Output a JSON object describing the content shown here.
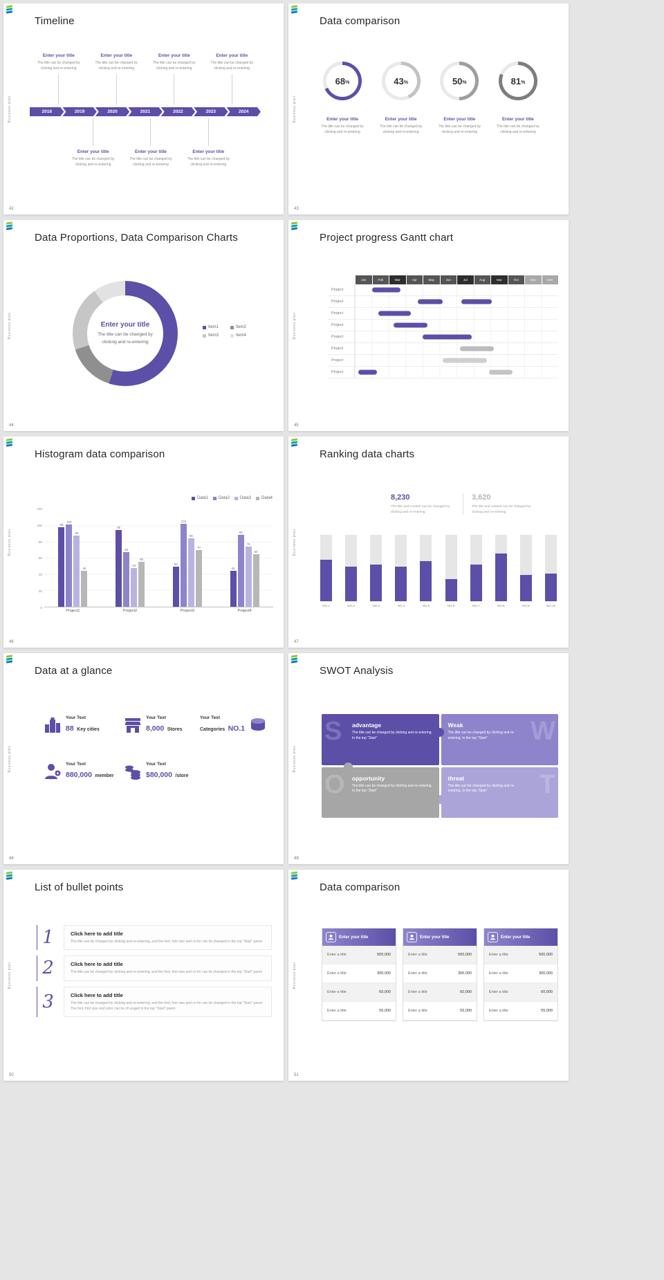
{
  "palette": {
    "primary": "#5b4fa8",
    "purple_medium": "#8d84cb",
    "purple_light": "#b9b3e2",
    "gray": "#b3b3b3"
  },
  "common": {
    "vertical_label": "Business plan",
    "percent_sign": "%"
  },
  "slides": {
    "timeline": {
      "page": "42",
      "title": "Timeline",
      "years": [
        "2018",
        "2019",
        "2020",
        "2021",
        "2022",
        "2023",
        "2024"
      ],
      "top_items": [
        {
          "title": "Enter your title",
          "desc": "The title can be changed by clicking and re-entering"
        },
        {
          "title": "Enter your title",
          "desc": "The title can be changed by clicking and re-entering"
        },
        {
          "title": "Enter your title",
          "desc": "The title can be changed by clicking and re-entering"
        },
        {
          "title": "Enter your title",
          "desc": "The title can be changed by clicking and re-entering"
        }
      ],
      "bottom_items": [
        {
          "title": "Enter your title",
          "desc": "The title can be changed by clicking and re-entering"
        },
        {
          "title": "Enter your title",
          "desc": "The title can be changed by clicking and re-entering"
        },
        {
          "title": "Enter your title",
          "desc": "The title can be changed by clicking and re-entering"
        }
      ]
    },
    "comparison": {
      "page": "43",
      "title": "Data comparison",
      "items": [
        {
          "title": "Enter your title",
          "desc": "The title can be changed by clicking and re-entering"
        },
        {
          "title": "Enter your title",
          "desc": "The title can be changed by clicking and re-entering"
        },
        {
          "title": "Enter your title",
          "desc": "The title can be changed by clicking and re-entering"
        },
        {
          "title": "Enter your title",
          "desc": "The title can be changed by clicking and re-entering"
        }
      ]
    },
    "proportions": {
      "page": "44",
      "title": "Data Proportions, Data Comparison Charts",
      "center_title": "Enter your title",
      "center_desc": "The title can be changed by clicking and re-entering"
    },
    "gantt": {
      "page": "45",
      "title": "Project progress Gantt chart"
    },
    "histogram": {
      "page": "46",
      "title": "Histogram data comparison"
    },
    "ranking": {
      "page": "47",
      "title": "Ranking data charts",
      "stat1": {
        "value": "8,230",
        "desc": "The title and content can be changed by clicking and re-entering"
      },
      "stat2": {
        "value": "3,620",
        "desc": "The title and content can be changed by clicking and re-entering"
      }
    },
    "glance": {
      "page": "48",
      "title": "Data at a glance",
      "items": [
        {
          "pre": "Your Text",
          "num": "88",
          "label": "Key cities"
        },
        {
          "pre": "Your Text",
          "num": "8,000",
          "label": "Stores"
        },
        {
          "pre": "Your Text",
          "label": "Categories",
          "num": "NO.1"
        },
        {
          "pre": "Your Text",
          "num": "880,000",
          "label": "member"
        },
        {
          "pre": "Your Text",
          "num": "$80,000",
          "label": "/store"
        }
      ]
    },
    "swot": {
      "page": "49",
      "title": "SWOT Analysis",
      "quads": [
        {
          "letter": "S",
          "name": "advantage",
          "desc": "The title can be changed by clicking and re-entering. In the top \"Start\"",
          "color": "#5b4fa8"
        },
        {
          "letter": "W",
          "name": "Weak",
          "desc": "The title can be changed by clicking and re-entering. In the top \"Start\"",
          "color": "#8d84cb"
        },
        {
          "letter": "O",
          "name": "opportunity",
          "desc": "The title can be changed by clicking and re-entering. In the top \"Start\"",
          "color": "#a6a6a6"
        },
        {
          "letter": "T",
          "name": "threat",
          "desc": "The title can be changed by clicking and re-entering. In the top \"Start\"",
          "color": "#aba4d9"
        }
      ]
    },
    "bullets": {
      "page": "50",
      "title": "List of bullet points",
      "items": [
        {
          "num": "1",
          "title": "Click here to add title",
          "desc": "The title can be changed by clicking and re-entering, and the font, font size and co for can be changed in the top \"Start\" panel"
        },
        {
          "num": "2",
          "title": "Click here to add title",
          "desc": "The title can be changed by clicking and re-entering, and the font, font size and co for can be changed in the top \"Start\" panel"
        },
        {
          "num": "3",
          "title": "Click here to add title",
          "desc": "The title can be changed by clicking and re-entering, and the font, font size and co for can be changed in the top \"Start\" panel. The font, font size and color can be ch anged in the top \"Start\" panel."
        }
      ]
    },
    "cards": {
      "page": "51",
      "title": "Data comparison",
      "header": "Enter your title",
      "rows": [
        {
          "label": "Enter a title",
          "value": "500,000"
        },
        {
          "label": "Enter a title",
          "value": "300,000"
        },
        {
          "label": "Enter a title",
          "value": "60,000"
        },
        {
          "label": "Enter a title",
          "value": "55,000"
        }
      ]
    }
  },
  "chart_data": [
    {
      "type": "donut-rings",
      "slide": "43",
      "title": "Data comparison",
      "values": [
        68,
        43,
        50,
        81
      ],
      "colors": [
        "#5b4fa8",
        "#c2c2c2",
        "#9e9e9e",
        "#7d7d7d"
      ],
      "track": "#e9e9e9"
    },
    {
      "type": "pie",
      "slide": "44",
      "title": "Data Proportions, Data Comparison Charts",
      "segments": [
        {
          "label": "Item1",
          "value": 55,
          "color": "#5b4fa8"
        },
        {
          "label": "Item2",
          "value": 15,
          "color": "#8f8f8f"
        },
        {
          "label": "Item3",
          "value": 20,
          "color": "#c6c6c6"
        },
        {
          "label": "Item4",
          "value": 10,
          "color": "#e2e2e2"
        }
      ]
    },
    {
      "type": "gantt",
      "slide": "45",
      "title": "Project progress Gantt chart",
      "row_label": "Project",
      "rows": 8,
      "months": [
        {
          "label": "Jan",
          "shade": "d"
        },
        {
          "label": "Feb",
          "shade": "d"
        },
        {
          "label": "Mar",
          "shade": "k"
        },
        {
          "label": "Apr",
          "shade": "d"
        },
        {
          "label": "May",
          "shade": "d"
        },
        {
          "label": "Jun",
          "shade": "d"
        },
        {
          "label": "Jul",
          "shade": "k"
        },
        {
          "label": "Aug",
          "shade": "d"
        },
        {
          "label": "Sep",
          "shade": "k"
        },
        {
          "label": "Oct",
          "shade": "d"
        },
        {
          "label": "Nov",
          "shade": "l"
        },
        {
          "label": "Dec",
          "shade": "l"
        }
      ],
      "bars": [
        {
          "row": 0,
          "start": 1.0,
          "end": 2.7,
          "color": "#5b4fa8"
        },
        {
          "row": 1,
          "start": 3.7,
          "end": 5.2,
          "color": "#5b4fa8"
        },
        {
          "row": 1,
          "start": 6.3,
          "end": 8.1,
          "color": "#5b4fa8"
        },
        {
          "row": 2,
          "start": 1.4,
          "end": 3.3,
          "color": "#5b4fa8"
        },
        {
          "row": 3,
          "start": 2.3,
          "end": 4.3,
          "color": "#5b4fa8"
        },
        {
          "row": 4,
          "start": 4.0,
          "end": 6.9,
          "color": "#5b4fa8"
        },
        {
          "row": 5,
          "start": 6.2,
          "end": 8.2,
          "color": "#bcbcbc"
        },
        {
          "row": 6,
          "start": 5.2,
          "end": 7.8,
          "color": "#cfcfcf"
        },
        {
          "row": 7,
          "start": 0.2,
          "end": 1.3,
          "color": "#5b4fa8"
        },
        {
          "row": 7,
          "start": 7.9,
          "end": 9.3,
          "color": "#c4c4c4"
        }
      ]
    },
    {
      "type": "bar",
      "slide": "46",
      "title": "Histogram data comparison",
      "categories": [
        "Project1",
        "Project2",
        "Project3",
        "Project4"
      ],
      "series": [
        {
          "name": "Data1",
          "color": "#5b4fa8",
          "values": [
            99,
            95,
            50,
            45
          ]
        },
        {
          "name": "Data2",
          "color": "#8d84cb",
          "values": [
            102,
            68,
            103,
            89
          ]
        },
        {
          "name": "Data3",
          "color": "#b9b3e2",
          "values": [
            88,
            48,
            85,
            75
          ]
        },
        {
          "name": "Data4",
          "color": "#b7b7b7",
          "values": [
            45,
            56,
            70,
            65
          ]
        }
      ],
      "ylim": [
        0,
        120
      ],
      "yticks": [
        0,
        20,
        40,
        60,
        80,
        100,
        120
      ]
    },
    {
      "type": "ranking-bar",
      "slide": "47",
      "title": "Ranking data charts",
      "categories": [
        "NO.1",
        "NO.2",
        "NO.3",
        "NO.4",
        "NO.5",
        "NO.6",
        "NO.7",
        "NO.8",
        "NO.9",
        "NO.10"
      ],
      "values_pct": [
        62,
        52,
        55,
        52,
        60,
        33,
        55,
        72,
        40,
        42
      ],
      "bar_color": "#5b4fa8",
      "track_color": "#e6e6e6"
    }
  ]
}
